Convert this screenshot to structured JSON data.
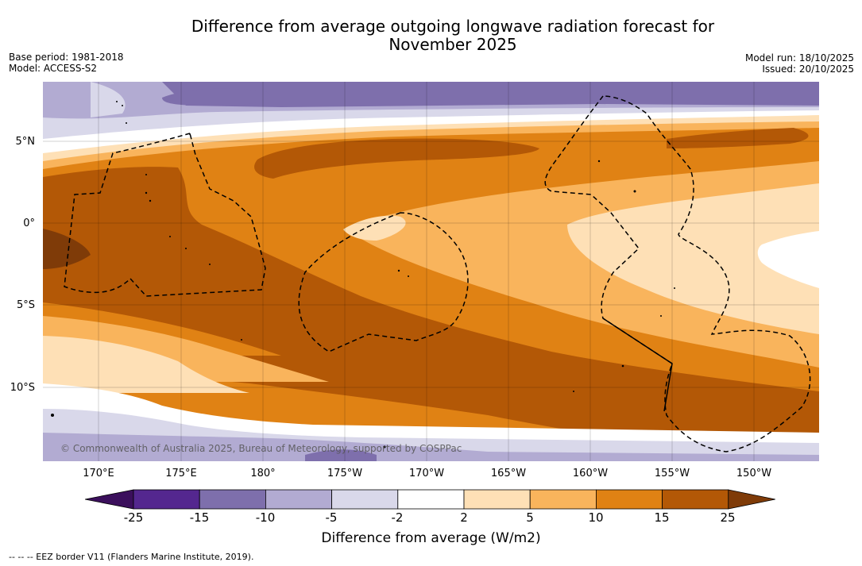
{
  "title_line1": "Difference from average outgoing longwave radiation forecast for",
  "title_line2": "November 2025",
  "base_period": "Base period: 1981-2018",
  "model": "Model: ACCESS-S2",
  "model_run": "Model run: 18/10/2025",
  "issued": "Issued: 20/10/2025",
  "lat_labels": [
    "5°N",
    "0°",
    "5°S",
    "10°S"
  ],
  "lon_labels": [
    "170°E",
    "175°E",
    "180°",
    "175°W",
    "170°W",
    "165°W",
    "160°W",
    "155°W",
    "150°W"
  ],
  "copyright": "© Commonwealth of Australia 2025, Bureau of Meteorology, supported by COSPPac",
  "colorbar": {
    "ticks": [
      "-25",
      "-15",
      "-10",
      "-5",
      "-2",
      "2",
      "5",
      "10",
      "15",
      "25"
    ],
    "colors": [
      "#3b0f5c",
      "#54278f",
      "#7e6fac",
      "#b2abd2",
      "#d9d8ea",
      "#ffffff",
      "#fee0b6",
      "#f9b45c",
      "#e08214",
      "#b35806",
      "#7f3b08"
    ],
    "label": "Difference from average (W/m2)"
  },
  "footnote": "--  --  -- EEZ border V11 (Flanders Marine Institute, 2019)."
}
